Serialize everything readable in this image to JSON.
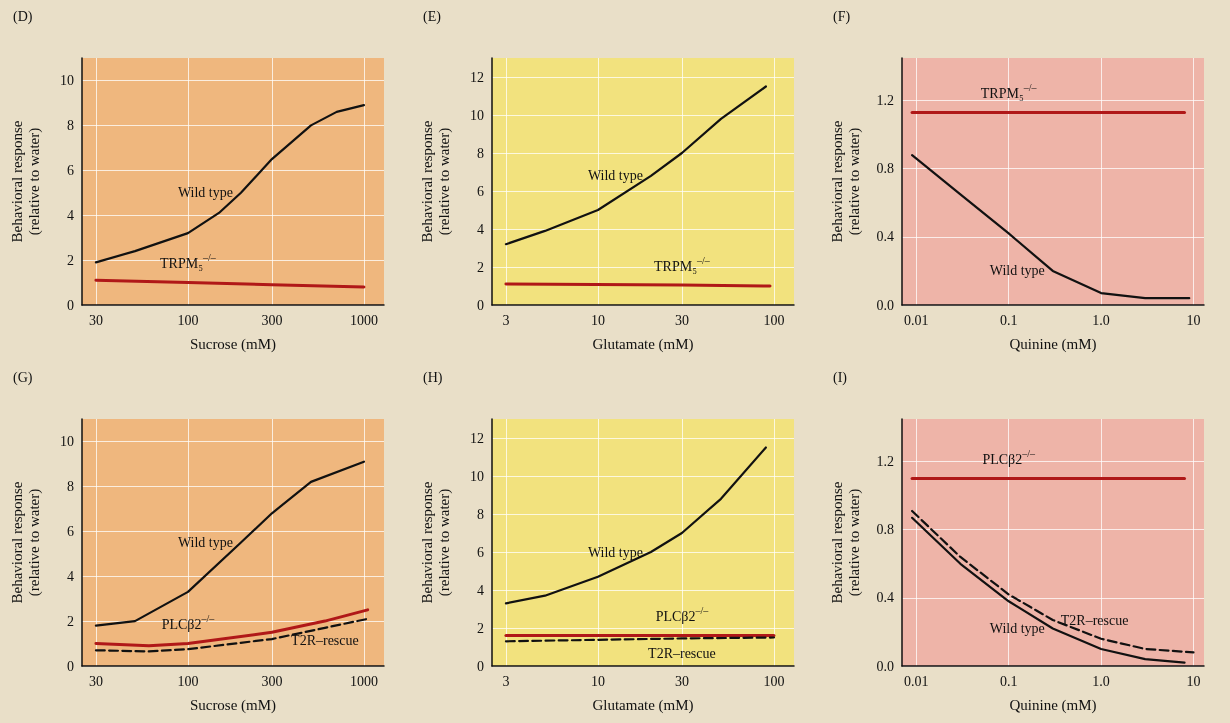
{
  "chart_data": [
    {
      "type": "line",
      "title": "(D)",
      "xlabel": "Sucrose (mM)",
      "ylabel": "Behavioral response\n(relative to water)",
      "log": "x",
      "xlim": [
        25,
        1300
      ],
      "xticks": [
        30,
        100,
        300,
        1000
      ],
      "ylim": [
        0,
        11
      ],
      "yticks": [
        0,
        2,
        4,
        6,
        8,
        10
      ],
      "grid": true,
      "legend": false,
      "marker": "none",
      "series": [
        {
          "name": "Wild type",
          "color": "#111111",
          "x": [
            30,
            50,
            100,
            150,
            200,
            300,
            500,
            700,
            1000
          ],
          "values": [
            1.9,
            2.4,
            3.2,
            4.1,
            5.0,
            6.5,
            8.0,
            8.6,
            8.9
          ]
        },
        {
          "name": "TRPM₅$^{–/–}$",
          "color": "#b01818",
          "x": [
            30,
            100,
            300,
            1000
          ],
          "values": [
            1.1,
            1.0,
            0.9,
            0.8
          ]
        }
      ]
    },
    {
      "type": "line",
      "title": "(E)",
      "xlabel": "Glutamate (mM)",
      "ylabel": "Behavioral response\n(relative to water)",
      "log": "x",
      "xlim": [
        2.5,
        130
      ],
      "xticks": [
        3,
        10,
        30,
        100
      ],
      "ylim": [
        0,
        13
      ],
      "yticks": [
        0,
        2,
        4,
        6,
        8,
        10,
        12
      ],
      "grid": true,
      "legend": false,
      "marker": "none",
      "series": [
        {
          "name": "Wild type",
          "color": "#111111",
          "x": [
            3,
            5,
            10,
            20,
            30,
            50,
            90
          ],
          "values": [
            3.2,
            3.9,
            5.0,
            6.8,
            8.0,
            9.8,
            11.5
          ]
        },
        {
          "name": "TRPM₅$^{–/–}$",
          "color": "#b01818",
          "x": [
            3,
            30,
            95
          ],
          "values": [
            1.1,
            1.05,
            1.0
          ]
        }
      ]
    },
    {
      "type": "line",
      "title": "(F)",
      "xlabel": "Quinine (mM)",
      "ylabel": "Behavioral response\n(relative to water)",
      "log": "x",
      "xlim": [
        0.007,
        13
      ],
      "xticks": [
        0.01,
        0.1,
        {
          "value": 1,
          "label": "1.0"
        },
        10
      ],
      "ylim": [
        0,
        1.45
      ],
      "yticks": [
        {
          "value": 0,
          "label": "0.0"
        },
        0.4,
        0.8,
        1.2
      ],
      "grid": true,
      "legend": false,
      "marker": "none",
      "series": [
        {
          "name": "Wild type",
          "color": "#111111",
          "x": [
            0.009,
            0.03,
            0.1,
            0.3,
            1,
            3,
            9
          ],
          "values": [
            0.88,
            0.65,
            0.42,
            0.2,
            0.07,
            0.04,
            0.04
          ]
        },
        {
          "name": "TRPM₅$^{–/–}$",
          "color": "#b01818",
          "x": [
            0.009,
            0.1,
            1,
            8
          ],
          "values": [
            1.13,
            1.13,
            1.13,
            1.13
          ]
        }
      ]
    },
    {
      "type": "line",
      "title": "(G)",
      "xlabel": "Sucrose (mM)",
      "ylabel": "Behavioral response\n(relative to water)",
      "log": "x",
      "xlim": [
        25,
        1300
      ],
      "xticks": [
        30,
        100,
        300,
        1000
      ],
      "ylim": [
        0,
        11
      ],
      "yticks": [
        0,
        2,
        4,
        6,
        8,
        10
      ],
      "grid": true,
      "legend": false,
      "marker": "none",
      "series": [
        {
          "name": "Wild type",
          "color": "#111111",
          "x": [
            30,
            50,
            100,
            200,
            300,
            500,
            1000
          ],
          "values": [
            1.8,
            2.0,
            3.3,
            5.5,
            6.8,
            8.2,
            9.1
          ]
        },
        {
          "name": "PLCβ2$^{–/–}$",
          "color": "#b01818",
          "x": [
            30,
            60,
            100,
            300,
            600,
            1050
          ],
          "values": [
            1.0,
            0.9,
            1.0,
            1.5,
            2.0,
            2.5
          ]
        },
        {
          "name": "T2R–rescue",
          "color": "#111111",
          "line_style": "dashed",
          "x": [
            30,
            60,
            100,
            300,
            600,
            1050
          ],
          "values": [
            0.7,
            0.65,
            0.75,
            1.2,
            1.7,
            2.1
          ]
        }
      ]
    },
    {
      "type": "line",
      "title": "(H)",
      "xlabel": "Glutamate (mM)",
      "ylabel": "Behavioral response\n(relative to water)",
      "log": "x",
      "xlim": [
        2.5,
        130
      ],
      "xticks": [
        3,
        10,
        30,
        100
      ],
      "ylim": [
        0,
        13
      ],
      "yticks": [
        0,
        2,
        4,
        6,
        8,
        10,
        12
      ],
      "grid": true,
      "legend": false,
      "marker": "none",
      "series": [
        {
          "name": "Wild type",
          "color": "#111111",
          "x": [
            3,
            5,
            10,
            20,
            30,
            50,
            90
          ],
          "values": [
            3.3,
            3.7,
            4.7,
            6.0,
            7.0,
            8.8,
            11.5
          ]
        },
        {
          "name": "PLCβ2$^{–/–}$",
          "color": "#b01818",
          "x": [
            3,
            30,
            100
          ],
          "values": [
            1.6,
            1.6,
            1.6
          ]
        },
        {
          "name": "T2R–rescue",
          "color": "#111111",
          "line_style": "dashed",
          "x": [
            3,
            30,
            100
          ],
          "values": [
            1.3,
            1.45,
            1.5
          ]
        }
      ]
    },
    {
      "type": "line",
      "title": "(I)",
      "xlabel": "Quinine (mM)",
      "ylabel": "Behavioral response\n(relative to water)",
      "log": "x",
      "xlim": [
        0.007,
        13
      ],
      "xticks": [
        0.01,
        0.1,
        {
          "value": 1,
          "label": "1.0"
        },
        10
      ],
      "ylim": [
        0,
        1.45
      ],
      "yticks": [
        {
          "value": 0,
          "label": "0.0"
        },
        0.4,
        0.8,
        1.2
      ],
      "grid": true,
      "legend": false,
      "marker": "none",
      "series": [
        {
          "name": "Wild type",
          "color": "#111111",
          "x": [
            0.009,
            0.03,
            0.1,
            0.3,
            1,
            3,
            8
          ],
          "values": [
            0.87,
            0.6,
            0.38,
            0.22,
            0.1,
            0.04,
            0.02
          ]
        },
        {
          "name": "PLCβ2$^{–/–}$",
          "color": "#b01818",
          "x": [
            0.009,
            0.1,
            1,
            8
          ],
          "values": [
            1.1,
            1.1,
            1.1,
            1.1
          ]
        },
        {
          "name": "T2R–rescue",
          "color": "#111111",
          "line_style": "dashed",
          "x": [
            0.009,
            0.03,
            0.1,
            0.3,
            1,
            3,
            10
          ],
          "values": [
            0.91,
            0.64,
            0.42,
            0.27,
            0.16,
            0.1,
            0.08
          ]
        }
      ]
    }
  ]
}
